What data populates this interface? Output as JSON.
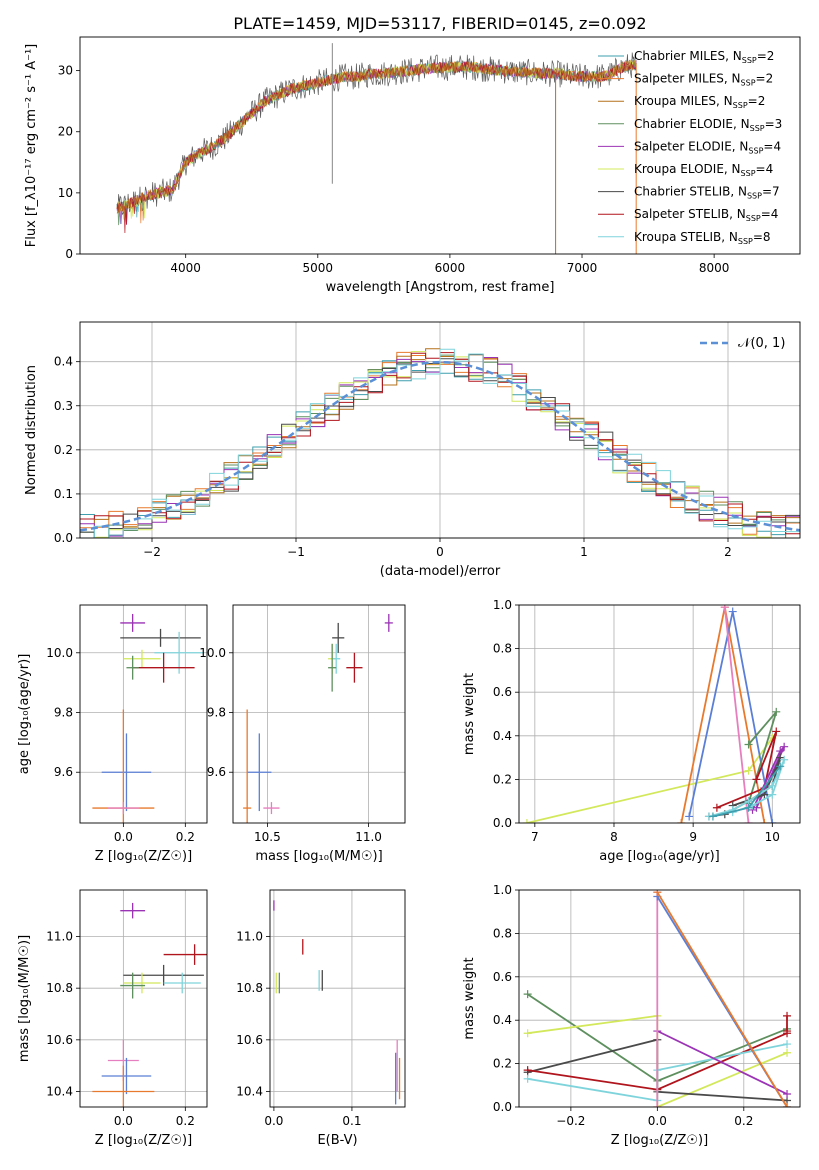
{
  "figure_title": "PLATE=1459, MJD=53117, FIBERID=0145, z=0.092",
  "colors": {
    "Chabrier MILES": "#3f9fae",
    "Salpeter MILES": "#e87a2e",
    "Kroupa MILES": "#b5701c",
    "Chabrier ELODIE": "#5e8f5e",
    "Salpeter ELODIE": "#9b33b5",
    "Kroupa ELODIE": "#d3e85a",
    "Chabrier STELIB": "#4a4a4a",
    "Salpeter STELIB": "#b0141c",
    "Kroupa STELIB": "#7fd4dc",
    "gaussian": "#5b8fd6",
    "pink": "#e67fbf",
    "blue": "#5b7fd6"
  },
  "chart_data": [
    {
      "id": "spectrum",
      "type": "line",
      "xlabel": "wavelength [Angstrom, rest frame]",
      "ylabel": "Flux [f_λ10⁻¹⁷ erg cm⁻² s⁻¹ A⁻¹]",
      "xlim": [
        3200,
        8650
      ],
      "ylim": [
        0,
        35.5
      ],
      "xticks": [
        "4000",
        "5000",
        "6000",
        "7000",
        "8000"
      ],
      "yticks": [
        "0",
        "10",
        "20",
        "30"
      ],
      "grid": false,
      "legend_position": "top-right",
      "legend": [
        {
          "label": "Chabrier MILES, N",
          "sub": "SSP",
          "suffix": "=2",
          "color": "Chabrier MILES"
        },
        {
          "label": "Salpeter MILES, N",
          "sub": "SSP",
          "suffix": "=2",
          "color": "Salpeter MILES"
        },
        {
          "label": "Kroupa MILES, N",
          "sub": "SSP",
          "suffix": "=2",
          "color": "Kroupa MILES"
        },
        {
          "label": "Chabrier ELODIE, N",
          "sub": "SSP",
          "suffix": "=3",
          "color": "Chabrier ELODIE"
        },
        {
          "label": "Salpeter ELODIE, N",
          "sub": "SSP",
          "suffix": "=4",
          "color": "Salpeter ELODIE"
        },
        {
          "label": "Kroupa ELODIE, N",
          "sub": "SSP",
          "suffix": "=4",
          "color": "Kroupa ELODIE"
        },
        {
          "label": "Chabrier STELIB, N",
          "sub": "SSP",
          "suffix": "=7",
          "color": "Chabrier STELIB"
        },
        {
          "label": "Salpeter STELIB, N",
          "sub": "SSP",
          "suffix": "=4",
          "color": "Salpeter STELIB"
        },
        {
          "label": "Kroupa STELIB, N",
          "sub": "SSP",
          "suffix": "=8",
          "color": "Kroupa STELIB"
        }
      ],
      "continuum": [
        [
          3480,
          7.5
        ],
        [
          3600,
          8.5
        ],
        [
          3700,
          9.5
        ],
        [
          3800,
          10
        ],
        [
          3900,
          10.5
        ],
        [
          4000,
          15
        ],
        [
          4100,
          16.5
        ],
        [
          4200,
          17.5
        ],
        [
          4300,
          19
        ],
        [
          4400,
          21
        ],
        [
          4500,
          23
        ],
        [
          4600,
          25
        ],
        [
          4700,
          26
        ],
        [
          4800,
          27
        ],
        [
          4900,
          27.5
        ],
        [
          5000,
          28
        ],
        [
          5100,
          28.5
        ],
        [
          5200,
          29
        ],
        [
          5300,
          29
        ],
        [
          5400,
          29.5
        ],
        [
          5500,
          29.5
        ],
        [
          5600,
          29.8
        ],
        [
          5700,
          30
        ],
        [
          5800,
          30.3
        ],
        [
          5900,
          30.5
        ],
        [
          6000,
          30.5
        ],
        [
          6100,
          30.6
        ],
        [
          6200,
          30.5
        ],
        [
          6300,
          30.2
        ],
        [
          6400,
          30
        ],
        [
          6500,
          29.8
        ],
        [
          6600,
          29.7
        ],
        [
          6700,
          29.5
        ],
        [
          6800,
          29.5
        ],
        [
          6900,
          29.2
        ],
        [
          7000,
          29
        ],
        [
          7100,
          29
        ],
        [
          7200,
          29.2
        ],
        [
          7300,
          30.5
        ],
        [
          7400,
          31
        ]
      ],
      "spikes": [
        {
          "x": 5110,
          "y0": 11.5,
          "y1": 34.5
        },
        {
          "x": 6800,
          "y0": 0,
          "y1": 29.5
        },
        {
          "x": 7410,
          "y0": 0,
          "y1": 31
        }
      ]
    },
    {
      "id": "residuals",
      "type": "histogram",
      "xlabel": "(data-model)/error",
      "ylabel": "Normed distribution",
      "xlim": [
        -2.5,
        2.5
      ],
      "ylim": [
        0,
        0.49
      ],
      "xticks": [
        "−2",
        "−1",
        "0",
        "1",
        "2"
      ],
      "yticks": [
        "0.0",
        "0.1",
        "0.2",
        "0.3",
        "0.4"
      ],
      "grid": true,
      "legend_position": "top-right",
      "gaussian_label": "𝒩(0, 1)",
      "bin_width": 0.1,
      "bin_start": -2.5
    },
    {
      "id": "age_vs_Z",
      "type": "scatter",
      "xlabel": "Z [log₁₀(Z/Z☉)]",
      "ylabel": "age  [log₁₀(age/yr)]",
      "xlim": [
        -0.14,
        0.27
      ],
      "ylim": [
        9.43,
        10.16
      ],
      "xticks": [
        "0.0",
        "0.2"
      ],
      "xtick_values": [
        0,
        0.2
      ],
      "yticks": [
        "9.6",
        "9.8",
        "10.0"
      ],
      "ytick_values": [
        9.6,
        9.8,
        10.0
      ],
      "grid": true,
      "points": [
        {
          "x": 0.03,
          "xerr": 0.04,
          "y": 10.1,
          "yerr": 0.03,
          "color": "Salpeter ELODIE"
        },
        {
          "x": 0.12,
          "xerr": 0.13,
          "y": 10.05,
          "yerr": 0.03,
          "color": "Chabrier STELIB"
        },
        {
          "x": 0.18,
          "xerr": 0.08,
          "y": 10.0,
          "yerr": 0.07,
          "color": "Kroupa STELIB"
        },
        {
          "x": 0.06,
          "xerr": 0.06,
          "y": 9.98,
          "yerr": 0.03,
          "color": "Kroupa ELODIE"
        },
        {
          "x": 0.13,
          "xerr": 0.1,
          "y": 9.95,
          "yerr": 0.05,
          "color": "Salpeter STELIB"
        },
        {
          "x": 0.03,
          "xerr": 0.02,
          "y": 9.95,
          "yerr": 0.04,
          "color": "Chabrier ELODIE"
        },
        {
          "x": 0.01,
          "xerr": 0.08,
          "y": 9.6,
          "yerr": 0.13,
          "color": "blue"
        },
        {
          "x": 0.0,
          "xerr": 0.1,
          "y": 9.48,
          "yerr": 0.33,
          "color": "Salpeter MILES"
        },
        {
          "x": 0.0,
          "xerr": 0.05,
          "y": 9.48,
          "yerr": 0.02,
          "color": "pink"
        }
      ]
    },
    {
      "id": "age_vs_mass",
      "type": "scatter",
      "xlabel": "mass [log₁₀(M/M☉)]",
      "ylabel": "",
      "xlim": [
        10.33,
        11.18
      ],
      "ylim": [
        9.43,
        10.16
      ],
      "xticks": [
        "10.5",
        "11.0"
      ],
      "xtick_values": [
        10.5,
        11.0
      ],
      "yticks": [
        "9.6",
        "9.8",
        "10.0"
      ],
      "ytick_values": [
        9.6,
        9.8,
        10.0
      ],
      "grid": true,
      "points": [
        {
          "x": 11.1,
          "xerr": 0.02,
          "y": 10.1,
          "yerr": 0.03,
          "color": "Salpeter ELODIE"
        },
        {
          "x": 10.85,
          "xerr": 0.03,
          "y": 10.05,
          "yerr": 0.05,
          "color": "Chabrier STELIB"
        },
        {
          "x": 10.93,
          "xerr": 0.04,
          "y": 9.95,
          "yerr": 0.05,
          "color": "Salpeter STELIB"
        },
        {
          "x": 10.82,
          "xerr": 0.02,
          "y": 9.98,
          "yerr": 0.05,
          "color": "Kroupa ELODIE"
        },
        {
          "x": 10.84,
          "xerr": 0.02,
          "y": 9.98,
          "yerr": 0.05,
          "color": "Kroupa STELIB"
        },
        {
          "x": 10.82,
          "xerr": 0.02,
          "y": 9.95,
          "yerr": 0.08,
          "color": "Chabrier ELODIE"
        },
        {
          "x": 10.46,
          "xerr": 0.06,
          "y": 9.6,
          "yerr": 0.13,
          "color": "blue"
        },
        {
          "x": 10.4,
          "xerr": 0.02,
          "y": 9.48,
          "yerr": 0.33,
          "color": "Salpeter MILES"
        },
        {
          "x": 10.52,
          "xerr": 0.04,
          "y": 9.48,
          "yerr": 0.02,
          "color": "pink"
        }
      ]
    },
    {
      "id": "massweight_vs_age",
      "type": "line",
      "xlabel": "age  [log₁₀(age/yr)]",
      "ylabel": "mass weight",
      "xlim": [
        6.8,
        10.35
      ],
      "ylim": [
        0,
        1.0
      ],
      "xticks": [
        "7",
        "8",
        "9",
        "10"
      ],
      "xtick_values": [
        7,
        8,
        9,
        10
      ],
      "yticks": [
        "0.0",
        "0.2",
        "0.4",
        "0.6",
        "0.8",
        "1.0"
      ],
      "ytick_values": [
        0,
        0.2,
        0.4,
        0.6,
        0.8,
        1.0
      ],
      "grid": true,
      "series": [
        {
          "color": "Kroupa ELODIE",
          "x": [
            6.9,
            9.7,
            10.0
          ],
          "y": [
            0.0,
            0.24,
            0.39
          ]
        },
        {
          "color": "Salpeter MILES",
          "x": [
            8.85,
            9.4,
            9.9
          ],
          "y": [
            0.0,
            0.99,
            0.0
          ]
        },
        {
          "color": "blue",
          "x": [
            8.95,
            9.5,
            10.0
          ],
          "y": [
            0.03,
            0.97,
            0.0
          ]
        },
        {
          "color": "pink",
          "x": [
            9.4,
            9.7
          ],
          "y": [
            0.99,
            0.0
          ]
        },
        {
          "color": "Chabrier ELODIE",
          "x": [
            9.7,
            10.05,
            9.7
          ],
          "y": [
            0.36,
            0.51,
            0.09
          ]
        },
        {
          "color": "Salpeter STELIB",
          "x": [
            9.3,
            9.9,
            10.05,
            9.8
          ],
          "y": [
            0.07,
            0.16,
            0.42,
            0.2
          ]
        },
        {
          "color": "Salpeter ELODIE",
          "x": [
            9.75,
            10.1,
            10.15,
            9.8
          ],
          "y": [
            0.06,
            0.33,
            0.35,
            0.07
          ]
        },
        {
          "color": "Chabrier STELIB",
          "x": [
            9.2,
            9.4,
            9.7,
            10.0,
            10.1,
            9.9,
            9.5
          ],
          "y": [
            0.03,
            0.04,
            0.1,
            0.17,
            0.3,
            0.13,
            0.08
          ]
        },
        {
          "color": "Kroupa STELIB",
          "x": [
            9.2,
            9.5,
            9.7,
            10.0,
            10.15,
            10.0,
            9.75,
            9.5
          ],
          "y": [
            0.03,
            0.06,
            0.1,
            0.17,
            0.29,
            0.13,
            0.08,
            0.05
          ]
        },
        {
          "color": "Chabrier MILES",
          "x": [
            9.25,
            9.7,
            10.1
          ],
          "y": [
            0.03,
            0.07,
            0.26
          ]
        }
      ]
    },
    {
      "id": "mass_vs_Z",
      "type": "scatter",
      "xlabel": "Z [log₁₀(Z/Z☉)]",
      "ylabel": "mass [log₁₀(M/M☉)]",
      "xlim": [
        -0.14,
        0.27
      ],
      "ylim": [
        10.34,
        11.18
      ],
      "xticks": [
        "0.0",
        "0.2"
      ],
      "xtick_values": [
        0,
        0.2
      ],
      "yticks": [
        "10.4",
        "10.6",
        "10.8",
        "11.0"
      ],
      "ytick_values": [
        10.4,
        10.6,
        10.8,
        11.0
      ],
      "grid": true,
      "points": [
        {
          "x": 0.03,
          "xerr": 0.04,
          "y": 11.1,
          "yerr": 0.03,
          "color": "Salpeter ELODIE"
        },
        {
          "x": 0.23,
          "xerr": 0.1,
          "y": 10.93,
          "yerr": 0.04,
          "color": "Salpeter STELIB"
        },
        {
          "x": 0.13,
          "xerr": 0.13,
          "y": 10.85,
          "yerr": 0.04,
          "color": "Chabrier STELIB"
        },
        {
          "x": 0.19,
          "xerr": 0.06,
          "y": 10.82,
          "yerr": 0.04,
          "color": "Kroupa STELIB"
        },
        {
          "x": 0.06,
          "xerr": 0.06,
          "y": 10.82,
          "yerr": 0.04,
          "color": "Kroupa ELODIE"
        },
        {
          "x": 0.03,
          "xerr": 0.04,
          "y": 10.81,
          "yerr": 0.05,
          "color": "Chabrier ELODIE"
        },
        {
          "x": 0.0,
          "xerr": 0.05,
          "y": 10.52,
          "yerr": 0.08,
          "color": "pink"
        },
        {
          "x": 0.01,
          "xerr": 0.08,
          "y": 10.46,
          "yerr": 0.07,
          "color": "blue"
        },
        {
          "x": 0.0,
          "xerr": 0.1,
          "y": 10.4,
          "yerr": 0.1,
          "color": "Salpeter MILES"
        }
      ]
    },
    {
      "id": "mass_vs_ebv",
      "type": "scatter",
      "xlabel": "E(B-V)",
      "ylabel": "",
      "xlim": [
        -0.005,
        0.168
      ],
      "ylim": [
        10.34,
        11.18
      ],
      "xticks": [
        "0.0",
        "0.1"
      ],
      "xtick_values": [
        0,
        0.1
      ],
      "yticks": [
        "10.4",
        "10.6",
        "10.8",
        "11.0"
      ],
      "ytick_values": [
        10.4,
        10.6,
        10.8,
        11.0
      ],
      "grid": true,
      "points": [
        {
          "x": 0.0,
          "xerr": 0,
          "y": 11.12,
          "yerr": 0.02,
          "color": "Salpeter ELODIE"
        },
        {
          "x": 0.037,
          "xerr": 0,
          "y": 10.96,
          "yerr": 0.03,
          "color": "Salpeter STELIB"
        },
        {
          "x": 0.003,
          "xerr": 0,
          "y": 10.82,
          "yerr": 0.04,
          "color": "Kroupa ELODIE"
        },
        {
          "x": 0.007,
          "xerr": 0,
          "y": 10.82,
          "yerr": 0.04,
          "color": "Chabrier ELODIE"
        },
        {
          "x": 0.058,
          "xerr": 0,
          "y": 10.83,
          "yerr": 0.04,
          "color": "Kroupa STELIB"
        },
        {
          "x": 0.062,
          "xerr": 0,
          "y": 10.83,
          "yerr": 0.04,
          "color": "Chabrier STELIB"
        },
        {
          "x": 0.156,
          "xerr": 0,
          "y": 10.45,
          "yerr": 0.1,
          "color": "blue"
        },
        {
          "x": 0.158,
          "xerr": 0,
          "y": 10.5,
          "yerr": 0.1,
          "color": "pink"
        },
        {
          "x": 0.161,
          "xerr": 0,
          "y": 10.45,
          "yerr": 0.08,
          "color": "Salpeter MILES"
        }
      ]
    },
    {
      "id": "massweight_vs_Z",
      "type": "line",
      "xlabel": "Z [log₁₀(Z/Z☉)]",
      "ylabel": "mass weight",
      "xlim": [
        -0.32,
        0.33
      ],
      "ylim": [
        0,
        1.0
      ],
      "xticks": [
        "−0.2",
        "0.0",
        "0.2"
      ],
      "xtick_values": [
        -0.2,
        0,
        0.2
      ],
      "yticks": [
        "0.0",
        "0.2",
        "0.4",
        "0.6",
        "0.8",
        "1.0"
      ],
      "ytick_values": [
        0,
        0.2,
        0.4,
        0.6,
        0.8,
        1.0
      ],
      "grid": true,
      "series": [
        {
          "color": "Chabrier ELODIE",
          "x": [
            -0.3,
            0.0,
            0.3
          ],
          "y": [
            0.52,
            0.12,
            0.36
          ]
        },
        {
          "color": "Kroupa ELODIE",
          "x": [
            -0.3,
            0.0,
            0.0,
            0.3
          ],
          "y": [
            0.34,
            0.42,
            0.0,
            0.25
          ]
        },
        {
          "color": "Chabrier STELIB",
          "x": [
            -0.3,
            0.0,
            0.0,
            0.3
          ],
          "y": [
            0.16,
            0.31,
            0.07,
            0.03
          ]
        },
        {
          "color": "Salpeter STELIB",
          "x": [
            -0.3,
            0.0,
            0.3
          ],
          "y": [
            0.17,
            0.08,
            0.34
          ]
        },
        {
          "color": "Kroupa STELIB",
          "x": [
            -0.3,
            0.0,
            0.0,
            0.3
          ],
          "y": [
            0.13,
            0.03,
            0.17,
            0.29
          ]
        },
        {
          "color": "Salpeter ELODIE",
          "x": [
            0.0,
            0.3
          ],
          "y": [
            0.35,
            0.06
          ]
        },
        {
          "color": "pink",
          "x": [
            0.0,
            0.0
          ],
          "y": [
            0.0,
            0.99
          ]
        },
        {
          "color": "blue",
          "x": [
            0.0,
            0.3
          ],
          "y": [
            0.97,
            0.0
          ]
        },
        {
          "color": "Salpeter MILES",
          "x": [
            0.0,
            0.3
          ],
          "y": [
            0.99,
            0.0
          ]
        },
        {
          "color": "Salpeter STELIB",
          "x": [
            0.3,
            0.3
          ],
          "y": [
            0.42,
            0.35
          ]
        }
      ]
    }
  ]
}
